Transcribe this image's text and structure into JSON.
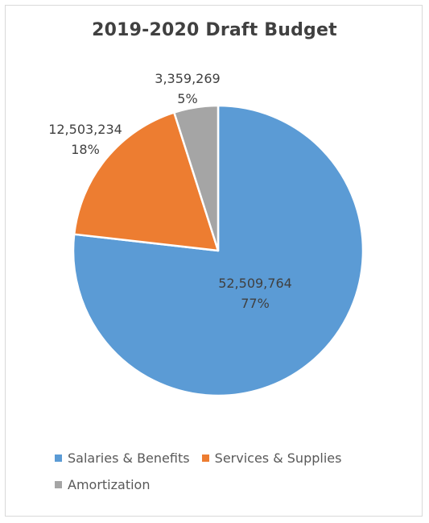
{
  "chart_data": {
    "type": "pie",
    "title": "2019-2020 Draft Budget",
    "categories": [
      "Salaries & Benefits",
      "Services & Supplies",
      "Amortization"
    ],
    "values": [
      52509764,
      12503234,
      3359269
    ],
    "value_labels": [
      "52,509,764",
      "12,503,234",
      "3,359,269"
    ],
    "percent_labels": [
      "77%",
      "18%",
      "5%"
    ],
    "colors": [
      "#5b9bd5",
      "#ed7d31",
      "#a5a5a5"
    ],
    "legend_position": "bottom"
  }
}
